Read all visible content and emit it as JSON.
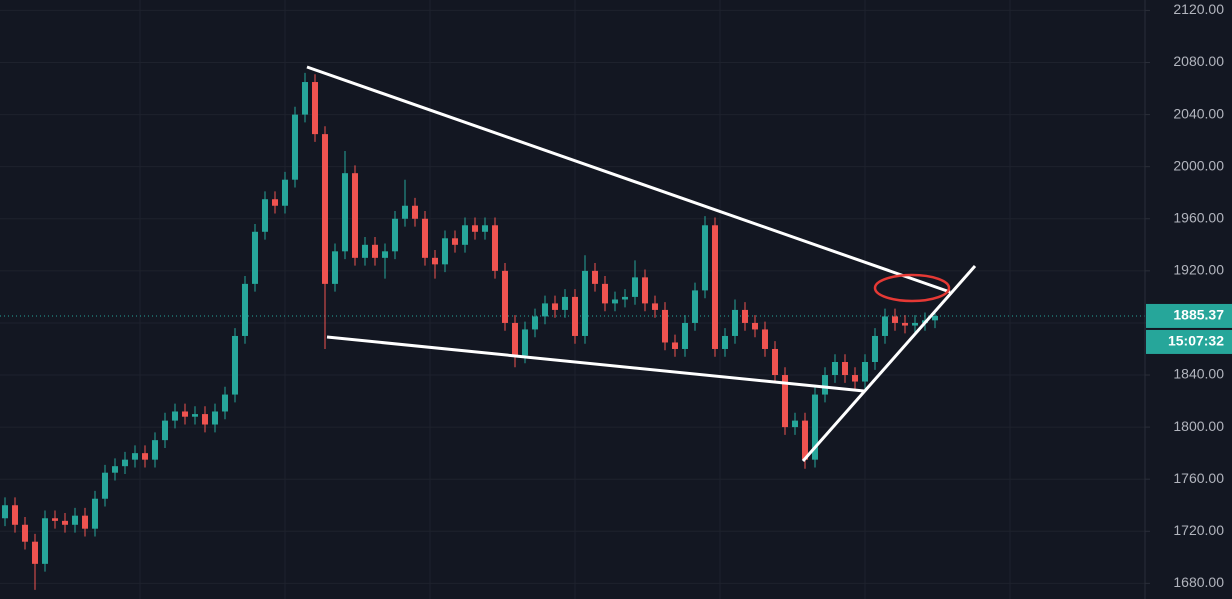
{
  "chart_data": {
    "type": "candlestick",
    "open": [
      1730,
      1740,
      1725,
      1712,
      1695,
      1730,
      1728,
      1725,
      1732,
      1722,
      1745,
      1765,
      1770,
      1775,
      1780,
      1775,
      1790,
      1805,
      1812,
      1808,
      1810,
      1802,
      1812,
      1825,
      1870,
      1910,
      1950,
      1975,
      1970,
      1990,
      2040,
      2065,
      2025,
      1910,
      1935,
      1995,
      1930,
      1940,
      1930,
      1935,
      1960,
      1970,
      1960,
      1930,
      1925,
      1945,
      1940,
      1955,
      1950,
      1955,
      1920,
      1880,
      1855,
      1875,
      1885,
      1895,
      1890,
      1900,
      1870,
      1920,
      1910,
      1895,
      1898,
      1900,
      1915,
      1895,
      1890,
      1865,
      1860,
      1880,
      1905,
      1955,
      1860,
      1870,
      1890,
      1880,
      1875,
      1860,
      1840,
      1800,
      1805,
      1775,
      1825,
      1840,
      1850,
      1840,
      1835,
      1850,
      1870,
      1885,
      1880,
      1878,
      1880,
      1882
    ],
    "high": [
      1746,
      1746,
      1731,
      1718,
      1736,
      1736,
      1734,
      1738,
      1738,
      1751,
      1771,
      1776,
      1781,
      1786,
      1786,
      1796,
      1811,
      1818,
      1818,
      1816,
      1816,
      1818,
      1831,
      1876,
      1916,
      1956,
      1981,
      1981,
      1996,
      2046,
      2072,
      2071,
      2031,
      1941,
      2012,
      2001,
      1946,
      1946,
      1941,
      1966,
      1990,
      1976,
      1966,
      1936,
      1951,
      1951,
      1961,
      1961,
      1961,
      1961,
      1926,
      1886,
      1881,
      1891,
      1901,
      1901,
      1906,
      1906,
      1932,
      1926,
      1916,
      1904,
      1906,
      1928,
      1921,
      1901,
      1896,
      1871,
      1886,
      1911,
      1962,
      1961,
      1876,
      1898,
      1896,
      1886,
      1881,
      1866,
      1846,
      1811,
      1811,
      1831,
      1846,
      1856,
      1856,
      1846,
      1856,
      1876,
      1891,
      1891,
      1886,
      1886,
      1888,
      1890
    ],
    "low": [
      1724,
      1719,
      1706,
      1675,
      1689,
      1722,
      1719,
      1719,
      1716,
      1716,
      1739,
      1759,
      1764,
      1769,
      1769,
      1769,
      1784,
      1799,
      1802,
      1802,
      1796,
      1796,
      1806,
      1819,
      1864,
      1904,
      1944,
      1964,
      1964,
      1984,
      2034,
      2019,
      1860,
      1904,
      1929,
      1924,
      1924,
      1924,
      1914,
      1929,
      1954,
      1954,
      1924,
      1914,
      1919,
      1934,
      1934,
      1944,
      1944,
      1914,
      1874,
      1846,
      1849,
      1869,
      1879,
      1884,
      1884,
      1864,
      1864,
      1904,
      1889,
      1889,
      1892,
      1894,
      1889,
      1884,
      1859,
      1854,
      1854,
      1874,
      1899,
      1854,
      1854,
      1864,
      1874,
      1869,
      1854,
      1834,
      1794,
      1794,
      1768,
      1769,
      1819,
      1834,
      1834,
      1829,
      1829,
      1844,
      1864,
      1874,
      1872,
      1872,
      1874,
      1876
    ],
    "close": [
      1740,
      1725,
      1712,
      1695,
      1730,
      1728,
      1725,
      1732,
      1722,
      1745,
      1765,
      1770,
      1775,
      1780,
      1775,
      1790,
      1805,
      1812,
      1808,
      1810,
      1802,
      1812,
      1825,
      1870,
      1910,
      1950,
      1975,
      1970,
      1990,
      2040,
      2065,
      2025,
      1910,
      1935,
      1995,
      1930,
      1940,
      1930,
      1935,
      1960,
      1970,
      1960,
      1930,
      1925,
      1945,
      1940,
      1955,
      1950,
      1955,
      1920,
      1880,
      1855,
      1875,
      1885,
      1895,
      1890,
      1900,
      1870,
      1920,
      1910,
      1895,
      1898,
      1900,
      1915,
      1895,
      1890,
      1865,
      1860,
      1880,
      1905,
      1955,
      1860,
      1870,
      1890,
      1880,
      1875,
      1860,
      1840,
      1800,
      1805,
      1775,
      1825,
      1840,
      1850,
      1840,
      1835,
      1850,
      1870,
      1885,
      1880,
      1878,
      1880,
      1882,
      1885.37
    ],
    "up_color": "#26a69a",
    "down_color": "#ef5350",
    "countdown": "15:07:32",
    "ylim": [
      1668,
      2128
    ],
    "yticks": [
      {
        "value": 1680,
        "label": "1680.00"
      },
      {
        "value": 1720,
        "label": "1720.00"
      },
      {
        "value": 1760,
        "label": "1760.00"
      },
      {
        "value": 1800,
        "label": "1800.00"
      },
      {
        "value": 1840,
        "label": "1840.00"
      },
      {
        "value": 1880,
        "label": "1880.00"
      },
      {
        "value": 1920,
        "label": "1920.00"
      },
      {
        "value": 1960,
        "label": "1960.00"
      },
      {
        "value": 2000,
        "label": "2000.00"
      },
      {
        "value": 2040,
        "label": "2040.00"
      },
      {
        "value": 2080,
        "label": "2080.00"
      },
      {
        "value": 2120,
        "label": "2120.00"
      }
    ],
    "grid": true
  }
}
